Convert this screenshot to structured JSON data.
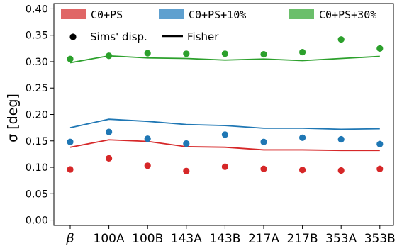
{
  "chart_data": {
    "type": "scatter",
    "ylabel": "σ [deg]",
    "xlabel": "",
    "ylim": [
      -0.01,
      0.41
    ],
    "yticks": [
      0.0,
      0.05,
      0.1,
      0.15,
      0.2,
      0.25,
      0.3,
      0.35,
      0.4
    ],
    "ytick_labels": [
      "0.00",
      "0.05",
      "0.10",
      "0.15",
      "0.20",
      "0.25",
      "0.30",
      "0.35",
      "0.40"
    ],
    "categories": [
      "β",
      "100A",
      "100B",
      "143A",
      "143B",
      "217A",
      "217B",
      "353A",
      "353B"
    ],
    "grid": false,
    "legend_placement": "top",
    "series": [
      {
        "name": "C0+PS",
        "color": "#d62728",
        "legend_color": "#e06666",
        "sims_disp": [
          0.096,
          0.117,
          0.103,
          0.093,
          0.101,
          0.097,
          0.095,
          0.094,
          0.097
        ],
        "fisher": [
          0.138,
          0.152,
          0.149,
          0.139,
          0.138,
          0.133,
          0.133,
          0.132,
          0.132
        ]
      },
      {
        "name": "C0+PS+10%",
        "color": "#1f77b4",
        "legend_color": "#5fa0cf",
        "sims_disp": [
          0.148,
          0.167,
          0.154,
          0.145,
          0.162,
          0.148,
          0.156,
          0.153,
          0.144
        ],
        "fisher": [
          0.175,
          0.191,
          0.187,
          0.181,
          0.179,
          0.174,
          0.174,
          0.172,
          0.173
        ]
      },
      {
        "name": "C0+PS+30%",
        "color": "#2ca02c",
        "legend_color": "#6bbf6b",
        "sims_disp": [
          0.305,
          0.311,
          0.316,
          0.315,
          0.315,
          0.314,
          0.318,
          0.342,
          0.325
        ],
        "fisher": [
          0.298,
          0.311,
          0.307,
          0.306,
          0.303,
          0.305,
          0.302,
          0.306,
          0.31
        ]
      }
    ],
    "marker_legend": {
      "dots_label": "Sims' disp.",
      "line_label": "Fisher"
    }
  }
}
